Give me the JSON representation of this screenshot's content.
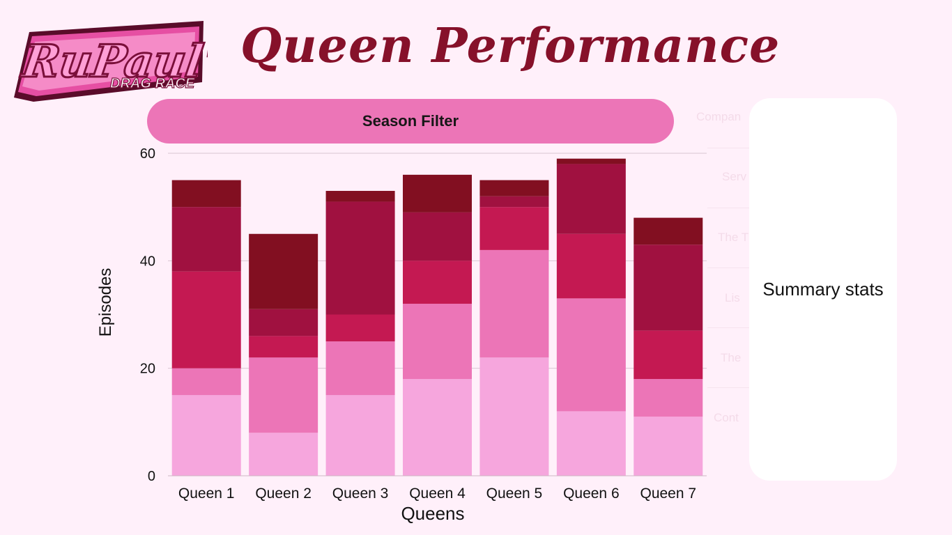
{
  "header": {
    "title": "Queen Performance",
    "logo_text_top": "RuPaul's",
    "logo_text_bottom": "DRAG RACE"
  },
  "filter": {
    "label": "Season Filter"
  },
  "side_list": {
    "items": [
      "Compan",
      "Serv",
      "The T",
      "Lis",
      "The",
      "Cont"
    ]
  },
  "summary": {
    "label": "Summary stats"
  },
  "colors": {
    "background": "#fff0fa",
    "title": "#86112a",
    "filter_pill": "#ec75b7",
    "segments": [
      "#f6a6dd",
      "#ec75b7",
      "#c41952",
      "#a01140",
      "#820f21"
    ]
  },
  "chart_data": {
    "type": "bar",
    "stacked": true,
    "categories": [
      "Queen 1",
      "Queen 2",
      "Queen 3",
      "Queen 4",
      "Queen 5",
      "Queen 6",
      "Queen 7"
    ],
    "series": [
      {
        "values": [
          15,
          8,
          15,
          18,
          22,
          12,
          11
        ]
      },
      {
        "values": [
          5,
          14,
          10,
          14,
          20,
          21,
          7
        ]
      },
      {
        "values": [
          18,
          4,
          5,
          8,
          8,
          12,
          9
        ]
      },
      {
        "values": [
          12,
          5,
          21,
          9,
          2,
          13,
          16
        ]
      },
      {
        "values": [
          5,
          14,
          2,
          7,
          3,
          1,
          5
        ]
      }
    ],
    "title": "",
    "xlabel": "Queens",
    "ylabel": "Episodes",
    "yticks": [
      "0",
      "20",
      "40",
      "60"
    ],
    "ylim": [
      0,
      60
    ],
    "grid": true,
    "legend": "none"
  }
}
